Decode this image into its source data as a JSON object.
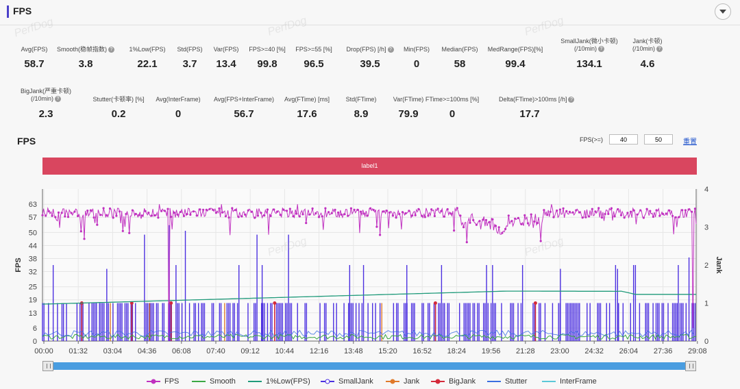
{
  "header": {
    "title": "FPS"
  },
  "stats_row1": [
    {
      "label": "Avg(FPS)",
      "value": "58.7",
      "help": false
    },
    {
      "label": "Smooth(稳帧指数)",
      "value": "3.8",
      "help": true
    },
    {
      "label": "1%Low(FPS)",
      "value": "22.1",
      "help": false
    },
    {
      "label": "Std(FPS)",
      "value": "3.7",
      "help": false
    },
    {
      "label": "Var(FPS)",
      "value": "13.4",
      "help": false
    },
    {
      "label": "FPS>=40 [%]",
      "value": "99.8",
      "help": false
    },
    {
      "label": "FPS>=55 [%]",
      "value": "96.5",
      "help": false
    },
    {
      "label": "Drop(FPS) [/h]",
      "value": "39.5",
      "help": true
    },
    {
      "label": "Min(FPS)",
      "value": "0",
      "help": false
    },
    {
      "label": "Median(FPS)",
      "value": "58",
      "help": false
    },
    {
      "label": "MedRange(FPS)[%]",
      "value": "99.4",
      "help": false
    },
    {
      "label": "SmallJank(微小卡顿)",
      "label2": "(/10min)",
      "value": "134.1",
      "help": true
    },
    {
      "label": "Jank(卡顿)",
      "label2": "(/10min)",
      "value": "4.6",
      "help": true
    }
  ],
  "stats_row2": [
    {
      "label": "BigJank(严重卡顿)",
      "label2": "(/10min)",
      "value": "2.3",
      "help": true
    },
    {
      "label": "Stutter(卡顿率) [%]",
      "value": "0.2",
      "help": false
    },
    {
      "label": "Avg(InterFrame)",
      "value": "0",
      "help": false
    },
    {
      "label": "Avg(FPS+InterFrame)",
      "value": "56.7",
      "help": false
    },
    {
      "label": "Avg(FTime) [ms]",
      "value": "17.6",
      "help": false
    },
    {
      "label": "Std(FTime)",
      "value": "8.9",
      "help": false
    },
    {
      "label": "Var(FTime)",
      "value": "79.9",
      "help": false
    },
    {
      "label": "FTime>=100ms [%]",
      "value": "0",
      "help": false
    },
    {
      "label": "Delta(FTime)>100ms [/h]",
      "value": "17.7",
      "help": true
    }
  ],
  "chart_controls": {
    "title": "FPS",
    "fps_ge_label": "FPS(>=)",
    "threshold_1": "40",
    "threshold_2": "50",
    "reset_label": "重置",
    "band_label": "label1"
  },
  "watermark_text": "PerfDog",
  "colors": {
    "accent": "#4a3fc9",
    "fps": "#c030c0",
    "smooth": "#3aa843",
    "low1": "#1f9a7a",
    "smalljank": "#4b2fe0",
    "jank": "#e07a2a",
    "bigjank": "#d42a3a",
    "stutter": "#3a6fe0",
    "interframe": "#5ac8d8",
    "band": "#d9465f",
    "slider": "#4a9de0"
  },
  "chart_data": {
    "type": "line",
    "ylabel": "FPS",
    "y2label": "Jank",
    "yticks": [
      0,
      6,
      13,
      19,
      25,
      32,
      38,
      44,
      50,
      57,
      63
    ],
    "y2ticks": [
      0,
      1,
      2,
      3,
      4
    ],
    "ylim": [
      0,
      70
    ],
    "y2lim": [
      0,
      4
    ],
    "xticks": [
      "00:00",
      "01:32",
      "03:04",
      "04:36",
      "06:08",
      "07:40",
      "09:12",
      "10:44",
      "12:16",
      "13:48",
      "15:20",
      "16:52",
      "18:24",
      "19:56",
      "21:28",
      "23:00",
      "24:32",
      "26:04",
      "27:36",
      "29:08"
    ],
    "duration_s": 1830,
    "series": [
      {
        "name": "FPS",
        "typical_value": 59,
        "min_value": 0,
        "max_value": 63
      },
      {
        "name": "Smooth",
        "typical_value": 2
      },
      {
        "name": "1%Low(FPS)",
        "start_value": 17,
        "peak_value": 23,
        "end_value": 21.5
      },
      {
        "name": "SmallJank",
        "jank_count_levels": [
          1,
          2
        ]
      },
      {
        "name": "Jank"
      },
      {
        "name": "BigJank"
      },
      {
        "name": "Stutter"
      },
      {
        "name": "InterFrame",
        "typical_value": 0
      }
    ],
    "legend_position": "bottom"
  },
  "legend": [
    {
      "name": "FPS",
      "color": "#c030c0"
    },
    {
      "name": "Smooth",
      "color": "#3aa843"
    },
    {
      "name": "1%Low(FPS)",
      "color": "#1f9a7a"
    },
    {
      "name": "SmallJank",
      "color": "#4b2fe0"
    },
    {
      "name": "Jank",
      "color": "#e07a2a"
    },
    {
      "name": "BigJank",
      "color": "#d42a3a"
    },
    {
      "name": "Stutter",
      "color": "#3a6fe0"
    },
    {
      "name": "InterFrame",
      "color": "#5ac8d8"
    }
  ]
}
